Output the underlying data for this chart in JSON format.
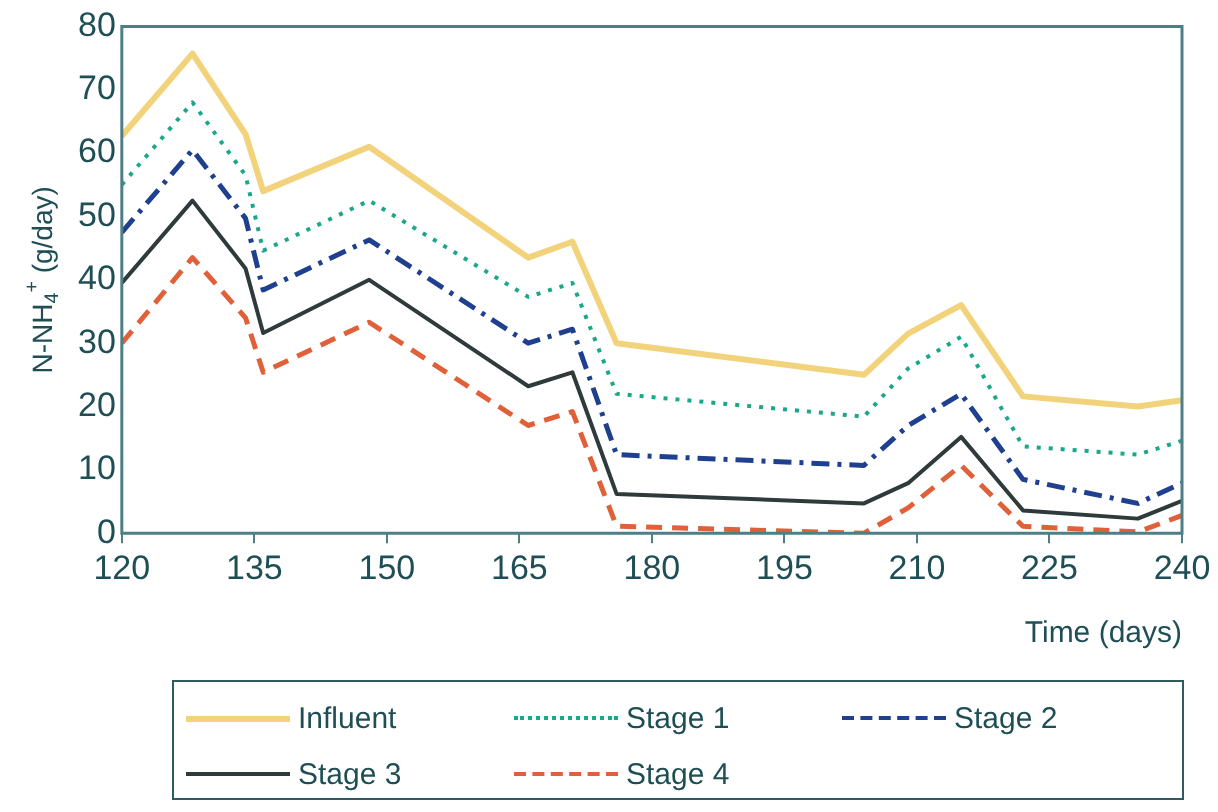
{
  "chart_data": {
    "type": "line",
    "xlabel": "Time (days)",
    "ylabel": "N-NH$_{4}$$^{+}$ (g/day)",
    "x": [
      120,
      128,
      134,
      136,
      148,
      166,
      171,
      176,
      204,
      209,
      215,
      222,
      235,
      240
    ],
    "xlim": [
      120,
      240
    ],
    "xticks": [
      120,
      135,
      150,
      165,
      180,
      195,
      210,
      225,
      240
    ],
    "ylim": [
      0,
      80
    ],
    "yticks": [
      0,
      10,
      20,
      30,
      40,
      50,
      60,
      70,
      80
    ],
    "grid": false,
    "legend": "bottom",
    "marker": "none",
    "series": [
      {
        "name": "Influent",
        "color": "#f2d27a",
        "line_style": "solid",
        "values": [
          62.7,
          75.7,
          63,
          54,
          61,
          43.5,
          46,
          30,
          25,
          31.5,
          36,
          21.6,
          20,
          21
        ]
      },
      {
        "name": "Stage 1",
        "color": "#1aa88a",
        "line_style": "dotted",
        "values": [
          55,
          68,
          56.5,
          44.6,
          52.5,
          37.3,
          39.5,
          22,
          18.4,
          26,
          31,
          13.7,
          12.4,
          14.6
        ]
      },
      {
        "name": "Stage 2",
        "color": "#1f3f8f",
        "line_style": "dashdot",
        "values": [
          47.5,
          60.5,
          49.7,
          38.4,
          46.3,
          30,
          32.2,
          12.4,
          10.7,
          17,
          22,
          8.5,
          4.7,
          7.9
        ]
      },
      {
        "name": "Stage 3",
        "color": "#2f3a3a",
        "line_style": "solid",
        "values": [
          39.5,
          52.5,
          41.8,
          31.6,
          40,
          23.2,
          25.4,
          6.2,
          4.7,
          7.9,
          15.2,
          3.6,
          2.3,
          5.1
        ]
      },
      {
        "name": "Stage 4",
        "color": "#e0603a",
        "line_style": "dashed",
        "values": [
          30,
          43.5,
          34,
          25.4,
          33.3,
          17,
          19.2,
          1.1,
          0,
          4,
          10.7,
          1.1,
          0.2,
          2.8
        ]
      }
    ]
  }
}
